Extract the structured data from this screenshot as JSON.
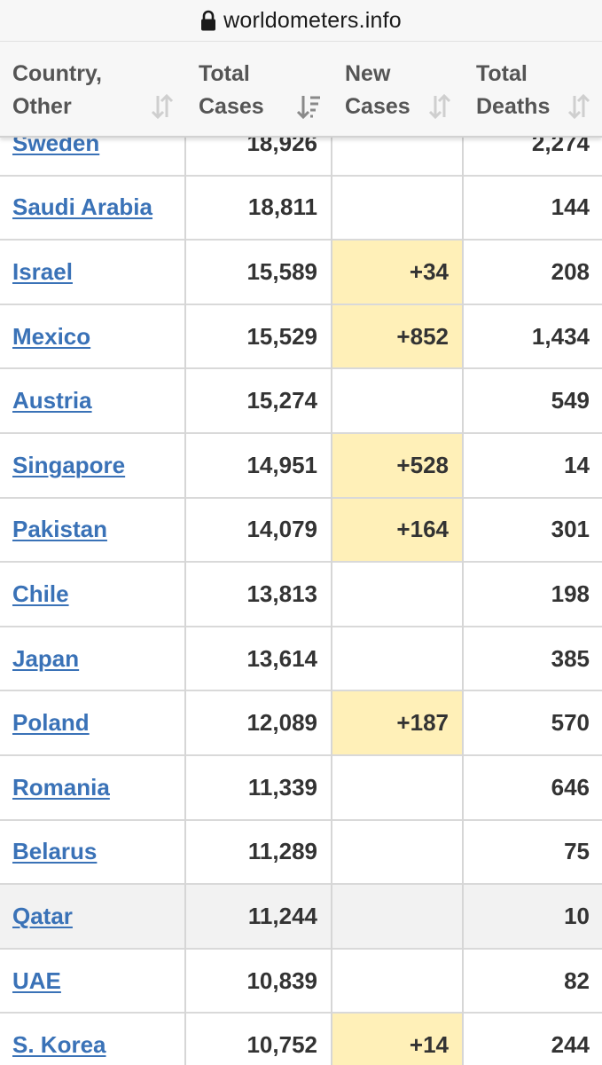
{
  "browser": {
    "url": "worldometers.info"
  },
  "table": {
    "headers": [
      {
        "line1": "Country,",
        "line2": "Other"
      },
      {
        "line1": "Total",
        "line2": "Cases"
      },
      {
        "line1": "New",
        "line2": "Cases"
      },
      {
        "line1": "Total",
        "line2": "Deaths"
      }
    ],
    "rows": [
      {
        "country": "Sweden",
        "total_cases": "18,926",
        "new_cases": "",
        "total_deaths": "2,274"
      },
      {
        "country": "Saudi Arabia",
        "total_cases": "18,811",
        "new_cases": "",
        "total_deaths": "144"
      },
      {
        "country": "Israel",
        "total_cases": "15,589",
        "new_cases": "+34",
        "total_deaths": "208"
      },
      {
        "country": "Mexico",
        "total_cases": "15,529",
        "new_cases": "+852",
        "total_deaths": "1,434"
      },
      {
        "country": "Austria",
        "total_cases": "15,274",
        "new_cases": "",
        "total_deaths": "549"
      },
      {
        "country": "Singapore",
        "total_cases": "14,951",
        "new_cases": "+528",
        "total_deaths": "14"
      },
      {
        "country": "Pakistan",
        "total_cases": "14,079",
        "new_cases": "+164",
        "total_deaths": "301"
      },
      {
        "country": "Chile",
        "total_cases": "13,813",
        "new_cases": "",
        "total_deaths": "198"
      },
      {
        "country": "Japan",
        "total_cases": "13,614",
        "new_cases": "",
        "total_deaths": "385"
      },
      {
        "country": "Poland",
        "total_cases": "12,089",
        "new_cases": "+187",
        "total_deaths": "570"
      },
      {
        "country": "Romania",
        "total_cases": "11,339",
        "new_cases": "",
        "total_deaths": "646"
      },
      {
        "country": "Belarus",
        "total_cases": "11,289",
        "new_cases": "",
        "total_deaths": "75"
      },
      {
        "country": "Qatar",
        "total_cases": "11,244",
        "new_cases": "",
        "total_deaths": "10"
      },
      {
        "country": "UAE",
        "total_cases": "10,839",
        "new_cases": "",
        "total_deaths": "82"
      },
      {
        "country": "S. Korea",
        "total_cases": "10,752",
        "new_cases": "+14",
        "total_deaths": "244"
      }
    ]
  },
  "colors": {
    "link": "#3a72b7",
    "new_cases_highlight": "#fff0b8",
    "header_bg": "#f7f7f7",
    "alt_row_bg": "#f2f2f2"
  },
  "icons": [
    "lock-icon",
    "sort-icon",
    "sort-desc-icon"
  ]
}
